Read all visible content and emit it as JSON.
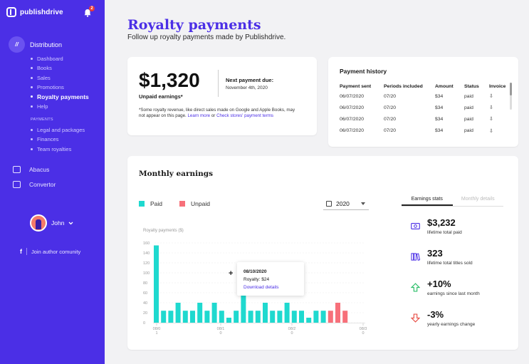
{
  "brand": {
    "name": "publishdrive"
  },
  "notifications": {
    "count": "2"
  },
  "sidebar": {
    "main_item": {
      "icon": "book-icon",
      "icon_text": "//",
      "label": "Distribution"
    },
    "sub_items": [
      {
        "label": "Dashboard"
      },
      {
        "label": "Books"
      },
      {
        "label": "Sales"
      },
      {
        "label": "Promotions"
      },
      {
        "label": "Royalty payments"
      },
      {
        "label": "Help"
      }
    ],
    "payments_label": "PAYMENTS",
    "payments_items": [
      {
        "label": "Legal and packages"
      },
      {
        "label": "Finances"
      },
      {
        "label": "Team royalties"
      }
    ],
    "tools": [
      {
        "label": "Abacus",
        "icon": "abacus-icon"
      },
      {
        "label": "Convertor",
        "icon": "convertor-icon"
      }
    ],
    "user": {
      "name": "John"
    },
    "join": {
      "icon_text": "f",
      "label": "Join author comunity"
    }
  },
  "page": {
    "title": "Royalty payments",
    "subtitle": "Follow up royalty payments made by Publishdrive."
  },
  "summary": {
    "amount": "$1,320",
    "amount_label": "Unpaid earnings*",
    "next_label": "Next payment due:",
    "next_date": "November 4th, 2020",
    "note_text": "*Some royalty revenue, like direct sales made on Google and Apple Books, may not appear on this page. ",
    "note_link1": "Learn more",
    "note_or": " or ",
    "note_link2": "Check stores' payment terms"
  },
  "payment_history": {
    "title": "Payment history",
    "columns": [
      "Payment sent",
      "Periods included",
      "Amount",
      "Status",
      "Invoice"
    ],
    "rows": [
      [
        "06/07/2020",
        "07/20",
        "$34",
        "paid"
      ],
      [
        "06/07/2020",
        "07/20",
        "$34",
        "paid"
      ],
      [
        "06/07/2020",
        "07/20",
        "$34",
        "paid"
      ],
      [
        "06/07/2020",
        "07/20",
        "$34",
        "paid"
      ]
    ]
  },
  "monthly": {
    "title": "Monthly earnings",
    "legend_paid": "Paid",
    "legend_unpaid": "Unpaid",
    "year": "2020",
    "tabs": [
      "Earnings stats",
      "Monthly details"
    ],
    "tooltip": {
      "date": "08/10/2020",
      "royalty": "Royalty: $24",
      "link": "Download details"
    },
    "stats": [
      {
        "icon": "money-icon",
        "value": "$3,232",
        "label": "lifetime total paid",
        "color": "#4b2fe6"
      },
      {
        "icon": "books-icon",
        "value": "323",
        "label": "lifetime total titles sold",
        "color": "#4b2fe6"
      },
      {
        "icon": "arrow-up-icon",
        "value": "+10%",
        "label": "earnings since last month",
        "color": "#2fbf6b"
      },
      {
        "icon": "arrow-down-icon",
        "value": "-3%",
        "label": "yearly earnings change",
        "color": "#e8524a"
      }
    ]
  },
  "chart_data": {
    "type": "bar",
    "ylabel": "Royalty payments ($)",
    "ylim": [
      0,
      160
    ],
    "yticks": [
      0,
      20,
      40,
      60,
      80,
      100,
      120,
      140,
      160
    ],
    "xtick_labels": [
      "08/0\n1",
      "08/1\n0",
      "08/2\n0",
      "08/3\n0"
    ],
    "colors": {
      "paid": "#1fd9cf",
      "unpaid": "#f7707a"
    },
    "series": [
      {
        "name": "Paid",
        "values": [
          155,
          24,
          24,
          40,
          24,
          24,
          40,
          24,
          40,
          24,
          10,
          24,
          98,
          24,
          24,
          40,
          24,
          24,
          40,
          24,
          24,
          10,
          24,
          24
        ]
      },
      {
        "name": "Unpaid",
        "values": [
          24,
          40,
          24
        ]
      }
    ]
  }
}
